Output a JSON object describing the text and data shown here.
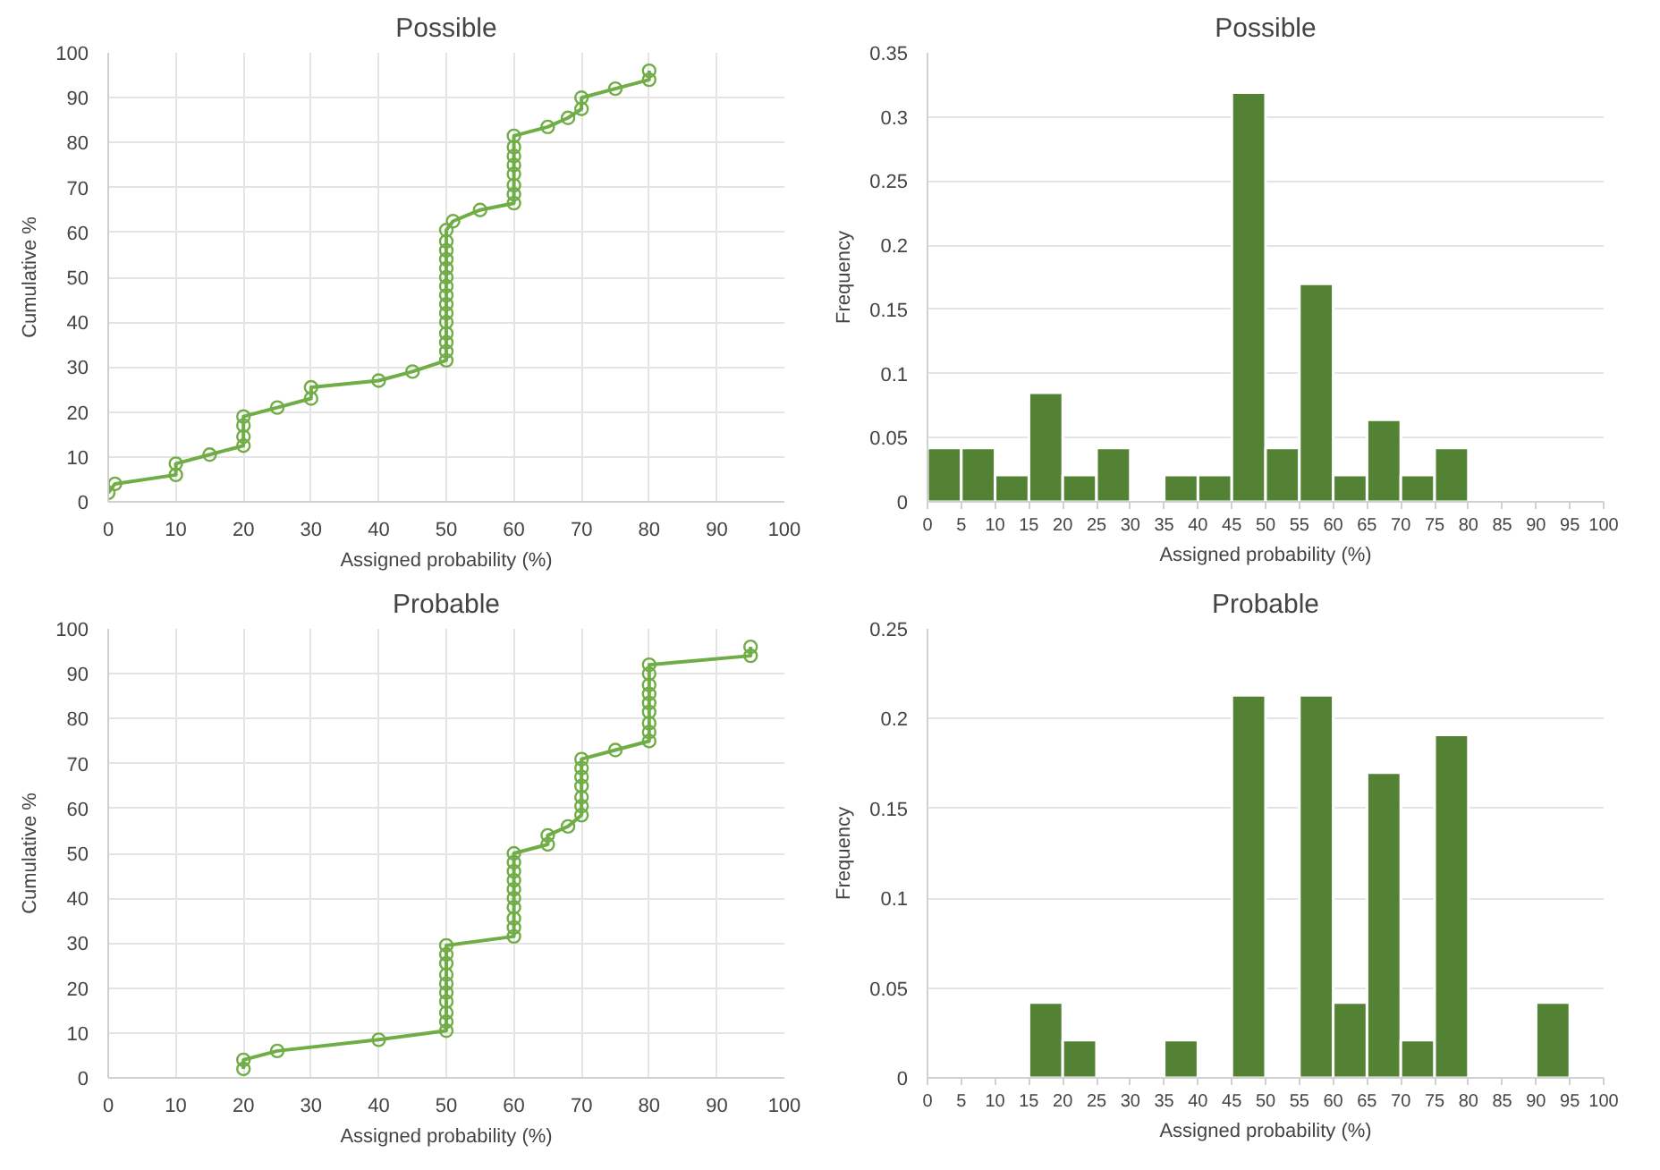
{
  "chart_data": [
    {
      "type": "line",
      "title": "Possible",
      "xlabel": "Assigned probability (%)",
      "ylabel": "Cumulative %",
      "xlim": [
        0,
        100
      ],
      "ylim": [
        0,
        100
      ],
      "xticks": [
        0,
        10,
        20,
        30,
        40,
        50,
        60,
        70,
        80,
        90,
        100
      ],
      "yticks": [
        0,
        10,
        20,
        30,
        40,
        50,
        60,
        70,
        80,
        90,
        100
      ],
      "grid": true,
      "marker": "circle",
      "line_style": "solid",
      "series": [
        {
          "color": "#70ad47",
          "x": [
            0,
            1,
            10,
            10,
            15,
            20,
            20,
            20,
            20,
            25,
            30,
            30,
            40,
            45,
            50,
            50,
            50,
            50,
            50,
            50,
            50,
            50,
            50,
            50,
            50,
            50,
            50,
            50,
            50,
            51,
            55,
            60,
            60,
            60,
            60,
            60,
            60,
            60,
            60,
            65,
            68,
            70,
            70,
            75,
            80,
            80
          ],
          "values": [
            2,
            4,
            6,
            8.5,
            10.5,
            12.5,
            14.5,
            17,
            19,
            21,
            23,
            25.5,
            27,
            29,
            31.5,
            33.5,
            35.5,
            37.5,
            40,
            42,
            44,
            46,
            48,
            50,
            52,
            54,
            56,
            58,
            60.5,
            62.5,
            65,
            66.5,
            68.5,
            70.5,
            73,
            75,
            77,
            79,
            81.5,
            83.5,
            85.5,
            87.5,
            90,
            92,
            94,
            96
          ]
        }
      ]
    },
    {
      "type": "histogram",
      "title": "Possible",
      "xlabel": "Assigned probability (%)",
      "ylabel": "Frequency",
      "xlim": [
        0,
        100
      ],
      "ylim": [
        0,
        0.35
      ],
      "xticks": [
        0,
        5,
        10,
        15,
        20,
        25,
        30,
        35,
        40,
        45,
        50,
        55,
        60,
        65,
        70,
        75,
        80,
        85,
        90,
        95,
        100
      ],
      "yticks": [
        0,
        0.05,
        0.1,
        0.15,
        0.2,
        0.25,
        0.3,
        0.35
      ],
      "grid": "y",
      "color": "#548235",
      "bins": [
        0,
        5,
        10,
        15,
        20,
        25,
        30,
        35,
        40,
        45,
        50,
        55,
        60,
        65,
        70,
        75,
        80,
        85,
        90,
        95,
        100
      ],
      "values": [
        0.042,
        0.042,
        0.021,
        0.085,
        0.021,
        0.042,
        0,
        0.021,
        0.021,
        0.319,
        0.042,
        0.17,
        0.021,
        0.064,
        0.021,
        0.042,
        0,
        0,
        0,
        0
      ]
    },
    {
      "type": "line",
      "title": "Probable",
      "xlabel": "Assigned probability (%)",
      "ylabel": "Cumulative %",
      "xlim": [
        0,
        100
      ],
      "ylim": [
        0,
        100
      ],
      "xticks": [
        0,
        10,
        20,
        30,
        40,
        50,
        60,
        70,
        80,
        90,
        100
      ],
      "yticks": [
        0,
        10,
        20,
        30,
        40,
        50,
        60,
        70,
        80,
        90,
        100
      ],
      "grid": true,
      "marker": "circle",
      "line_style": "solid",
      "series": [
        {
          "color": "#70ad47",
          "x": [
            20,
            20,
            25,
            40,
            50,
            50,
            50,
            50,
            50,
            50,
            50,
            50,
            50,
            50,
            60,
            60,
            60,
            60,
            60,
            60,
            60,
            60,
            60,
            60,
            65,
            65,
            68,
            70,
            70,
            70,
            70,
            70,
            70,
            70,
            75,
            80,
            80,
            80,
            80,
            80,
            80,
            80,
            80,
            80,
            95,
            95
          ],
          "values": [
            2,
            4,
            6,
            8.5,
            10.5,
            12.5,
            14.5,
            17,
            19,
            21,
            23,
            25.5,
            27.5,
            29.5,
            31.5,
            33.5,
            35.5,
            38,
            40,
            42,
            44,
            46,
            48,
            50,
            52,
            54,
            56,
            58.5,
            60.5,
            62.5,
            65,
            67,
            69,
            71,
            73,
            75,
            77,
            79,
            81.5,
            83.5,
            85.5,
            87.5,
            90,
            92,
            94,
            96
          ]
        }
      ]
    },
    {
      "type": "histogram",
      "title": "Probable",
      "xlabel": "Assigned probability (%)",
      "ylabel": "Frequency",
      "xlim": [
        0,
        100
      ],
      "ylim": [
        0,
        0.25
      ],
      "xticks": [
        0,
        5,
        10,
        15,
        20,
        25,
        30,
        35,
        40,
        45,
        50,
        55,
        60,
        65,
        70,
        75,
        80,
        85,
        90,
        95,
        100
      ],
      "yticks": [
        0,
        0.05,
        0.1,
        0.15,
        0.2,
        0.25
      ],
      "grid": "y",
      "color": "#548235",
      "bins": [
        0,
        5,
        10,
        15,
        20,
        25,
        30,
        35,
        40,
        45,
        50,
        55,
        60,
        65,
        70,
        75,
        80,
        85,
        90,
        95,
        100
      ],
      "values": [
        0,
        0,
        0,
        0.042,
        0.021,
        0,
        0,
        0.021,
        0,
        0.213,
        0,
        0.213,
        0.042,
        0.17,
        0.021,
        0.191,
        0,
        0,
        0.042,
        0
      ]
    }
  ]
}
